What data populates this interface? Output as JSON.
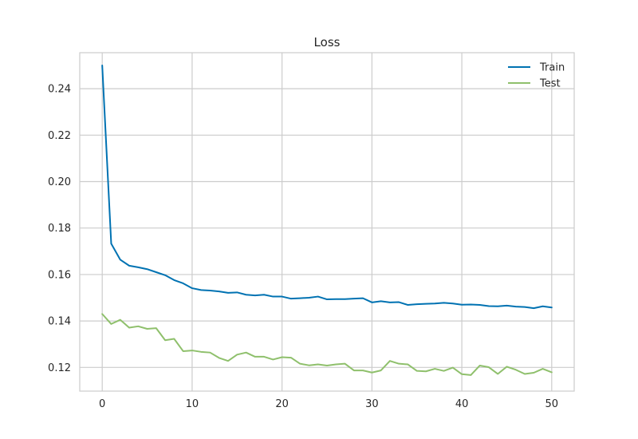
{
  "chart_data": {
    "type": "line",
    "title": "Loss",
    "xlabel": "",
    "ylabel": "",
    "xlim": [
      -2.5,
      52.5
    ],
    "ylim": [
      0.1098,
      0.2555
    ],
    "xticks": [
      0,
      10,
      20,
      30,
      40,
      50
    ],
    "yticks": [
      0.12,
      0.14,
      0.16,
      0.18,
      0.2,
      0.22,
      0.24
    ],
    "ytick_labels": [
      "0.12",
      "0.14",
      "0.16",
      "0.18",
      "0.20",
      "0.22",
      "0.24"
    ],
    "grid": true,
    "legend_position": "top-right",
    "x": [
      0,
      1,
      2,
      3,
      4,
      5,
      6,
      7,
      8,
      9,
      10,
      11,
      12,
      13,
      14,
      15,
      16,
      17,
      18,
      19,
      20,
      21,
      22,
      23,
      24,
      25,
      26,
      27,
      28,
      29,
      30,
      31,
      32,
      33,
      34,
      35,
      36,
      37,
      38,
      39,
      40,
      41,
      42,
      43,
      44,
      45,
      46,
      47,
      48,
      49,
      50
    ],
    "series": [
      {
        "name": "Train",
        "color": "#0072b2",
        "values": [
          0.25,
          0.1733,
          0.1664,
          0.1638,
          0.1631,
          0.1623,
          0.161,
          0.1597,
          0.1576,
          0.1562,
          0.1541,
          0.1533,
          0.1531,
          0.1527,
          0.1521,
          0.1523,
          0.1513,
          0.151,
          0.1513,
          0.1505,
          0.1505,
          0.1496,
          0.1498,
          0.15,
          0.1505,
          0.1493,
          0.1494,
          0.1494,
          0.1496,
          0.1498,
          0.148,
          0.1485,
          0.148,
          0.1481,
          0.1469,
          0.1472,
          0.1474,
          0.1475,
          0.1478,
          0.1475,
          0.147,
          0.1471,
          0.1469,
          0.1464,
          0.1463,
          0.1466,
          0.1462,
          0.146,
          0.1455,
          0.1463,
          0.1458
        ]
      },
      {
        "name": "Test",
        "color": "#8fc06c",
        "values": [
          0.143,
          0.1387,
          0.1405,
          0.1371,
          0.1377,
          0.1366,
          0.1369,
          0.1317,
          0.1323,
          0.127,
          0.1273,
          0.1267,
          0.1264,
          0.1241,
          0.1228,
          0.1255,
          0.1264,
          0.1246,
          0.1246,
          0.1234,
          0.1244,
          0.1242,
          0.1216,
          0.1209,
          0.1213,
          0.1208,
          0.1213,
          0.1216,
          0.1187,
          0.1187,
          0.1178,
          0.1187,
          0.1228,
          0.1216,
          0.1213,
          0.1185,
          0.1183,
          0.1194,
          0.1185,
          0.1199,
          0.1171,
          0.1167,
          0.1208,
          0.1201,
          0.1172,
          0.1203,
          0.119,
          0.1172,
          0.1177,
          0.1194,
          0.1179
        ]
      }
    ]
  }
}
